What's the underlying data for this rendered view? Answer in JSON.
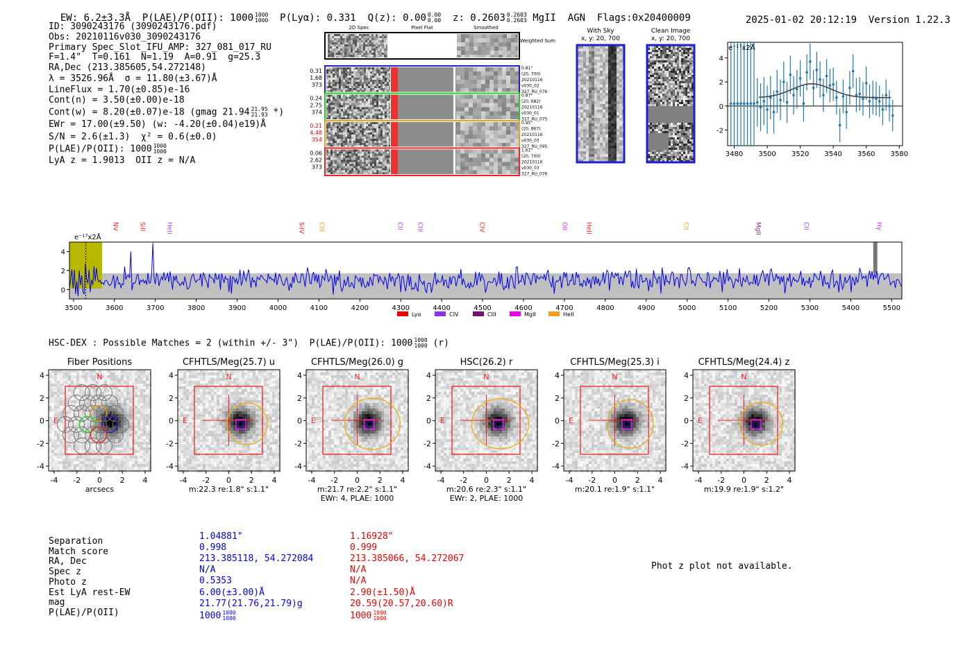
{
  "header": {
    "ew": "EW: 6.2±3.3Å",
    "plae_label": "P(LAE)/P(OII): 1000",
    "plae_hi": "1000",
    "plae_lo": "1000",
    "plya": "P(Lyα): 0.331",
    "qz_label": "Q(z): 0.00",
    "qz_hi": "0.00",
    "qz_lo": "0.00",
    "z_label": "z: 0.2603",
    "z_hi": "0.2603",
    "z_lo": "0.2603",
    "z_suffix": "MgII  AGN  Flags:0x20400009",
    "datetime": "2025-01-02 20:12:19",
    "version": "Version 1.22.3"
  },
  "info": {
    "id": "ID: 3090243176 (3090243176.pdf)",
    "obs": "Obs: 20210116v030_3090243176",
    "primary": "Primary Spec_Slot_IFU_AMP: 327_081_017_RU",
    "fiber_params": "F=1.4\"  T=0.161  N=1.19  A=0.91  g=25.3",
    "radec": "RA,Dec (213.385605,54.272148)",
    "lambda": "λ = 3526.96Å  σ = 11.80(±3.67)Å",
    "lineflux": "LineFlux = 1.70(±0.85)e-16",
    "contn": "Cont(n) = 3.50(±0.00)e-18",
    "contw": "Cont(w) = 8.20(±0.07)e-18 (gmag 21.94",
    "contw_hi": "21.95",
    "contw_lo": "21.93",
    "contw_end": "*)",
    "ewr": "EWr = 17.00(±9.50) (w: -4.20(±0.04)e19)Å",
    "sn": "S/N = 2.6(±1.3)  χ² = 0.6(±0.0)",
    "plae": "P(LAE)/P(OII): 1000",
    "plae_hi": "1000",
    "plae_lo": "1000",
    "lya_z": "LyA z = 1.9013  OII z = N/A"
  },
  "cutouts": {
    "col_titles": [
      "2D Spec",
      "Pixel Flat",
      "Smoothed"
    ],
    "weighted_sum": "Weighted Sum",
    "rows": [
      {
        "left": [
          "0.31",
          "1.68",
          "373"
        ],
        "right": [
          "0.81\"",
          "(20, 700)",
          "20210116",
          "v030_02",
          "327_RU_076"
        ],
        "color": "#1f1fd0",
        "left_color": "#000000"
      },
      {
        "left": [
          "0.24",
          "2.75",
          "374"
        ],
        "right": [
          "0.87\"",
          "(20, 682)",
          "20210116",
          "v030_01",
          "327_RU_075"
        ],
        "color": "#22cc22",
        "left_color": "#000000"
      },
      {
        "left": [
          "0.21",
          "4.48",
          "354"
        ],
        "right": [
          "0.95\"",
          "(20, 867)",
          "20210116",
          "v030_03",
          "327_RU_095"
        ],
        "color": "#e8a020",
        "left_color": "#ee0000"
      },
      {
        "left": [
          "0.06",
          "2.62",
          "373"
        ],
        "right": [
          "1.61\"",
          "(20, 700)",
          "20210116",
          "v030_03",
          "327_RU_076"
        ],
        "color": "#ee2222",
        "left_color": "#000000"
      }
    ],
    "with_sky": {
      "title": "With Sky",
      "sub": "x, y: 20, 700"
    },
    "clean": {
      "title": "Clean Image",
      "sub": "x, y: 20, 700"
    }
  },
  "gauss_plot": {
    "scale_label": "e⁻¹⁷x2Å",
    "x_ticks": [
      "3480",
      "3500",
      "3520",
      "3540",
      "3560",
      "3580"
    ],
    "y_ticks": [
      "-2",
      "0",
      "2",
      "4"
    ]
  },
  "full_spectrum": {
    "scale_label": "e⁻¹⁷x2Å",
    "x_ticks": [
      "3500",
      "3600",
      "3700",
      "3800",
      "3900",
      "4000",
      "4100",
      "4200",
      "4300",
      "4400",
      "4500",
      "4600",
      "4700",
      "4800",
      "4900",
      "5000",
      "5100",
      "5200",
      "5300",
      "5400",
      "5500"
    ],
    "y_ticks": [
      "0",
      "2",
      "4"
    ],
    "lines": [
      {
        "name": "NV",
        "color": "#ee2222"
      },
      {
        "name": "SiII",
        "color": "#ee2222"
      },
      {
        "name": "HeII",
        "color": "#aa44ee"
      },
      {
        "name": "SiIV",
        "color": "#ee2222"
      },
      {
        "name": "CIII",
        "color": "#e8a020"
      },
      {
        "name": "CII",
        "color": "#aa44ee"
      },
      {
        "name": "CIII",
        "color": "#aa44ee"
      },
      {
        "name": "CIV",
        "color": "#ee2222"
      },
      {
        "name": "OII",
        "color": "#ee22ee"
      },
      {
        "name": "HeII",
        "color": "#ee2222"
      },
      {
        "name": "CII",
        "color": "#e8a020"
      },
      {
        "name": "MgII",
        "color": "#882288"
      },
      {
        "name": "CII",
        "color": "#aa44ee"
      },
      {
        "name": "Hγ",
        "color": "#ee22ee"
      }
    ],
    "legend": [
      {
        "label": "Lyα",
        "color": "#ee0000"
      },
      {
        "label": "CIV",
        "color": "#8833ee"
      },
      {
        "label": "CIII",
        "color": "#771177"
      },
      {
        "label": "MgII",
        "color": "#ee00ee"
      },
      {
        "label": "HeII",
        "color": "#f0a020"
      }
    ]
  },
  "chart_data": [
    {
      "type": "scatter",
      "title": "",
      "xlabel": "",
      "ylabel": "e⁻¹⁷x2Å",
      "xlim": [
        3476,
        3582
      ],
      "ylim": [
        -3.3,
        5.3
      ],
      "fit": {
        "center": 3527,
        "sigma": 11.8,
        "amplitude": 1.15,
        "baseline": 0.7
      },
      "x": [
        3478,
        3480,
        3482,
        3484,
        3486,
        3488,
        3490,
        3492,
        3494,
        3496,
        3498,
        3500,
        3502,
        3504,
        3506,
        3508,
        3510,
        3512,
        3514,
        3516,
        3518,
        3520,
        3522,
        3524,
        3526,
        3528,
        3530,
        3532,
        3534,
        3536,
        3538,
        3540,
        3542,
        3544,
        3546,
        3548,
        3550,
        3552,
        3554,
        3556,
        3558,
        3560,
        3562,
        3564,
        3566,
        3568,
        3570,
        3572,
        3574,
        3576
      ],
      "y": [
        0.2,
        0.2,
        0.2,
        0.2,
        0.2,
        0.2,
        0.2,
        0.2,
        0.3,
        -0.1,
        0.4,
        -0.3,
        0.7,
        -0.5,
        1.2,
        0.5,
        2.0,
        0.3,
        2.6,
        0.9,
        1.4,
        2.3,
        0.2,
        2.8,
        3.7,
        1.5,
        3.0,
        2.2,
        0.9,
        2.5,
        1.7,
        1.8,
        0.7,
        -1.6,
        0.8,
        -0.5,
        1.5,
        2.9,
        0.9,
        1.0,
        0.6,
        1.9,
        0.4,
        0.7,
        0.6,
        0.4,
        -0.3,
        0.9,
        0.0,
        -0.8
      ],
      "yerr": [
        9,
        9,
        9,
        9,
        9,
        9,
        9,
        9,
        2.0,
        2.0,
        2.0,
        2.0,
        1.8,
        1.8,
        1.8,
        1.7,
        1.7,
        1.7,
        1.6,
        1.6,
        1.6,
        1.5,
        1.5,
        1.5,
        1.5,
        1.5,
        1.5,
        1.5,
        1.4,
        1.4,
        1.4,
        1.4,
        1.4,
        1.4,
        1.4,
        1.4,
        1.4,
        1.4,
        1.4,
        1.4,
        1.4,
        1.4,
        1.4,
        1.4,
        1.4,
        1.3,
        1.3,
        1.3,
        1.3,
        1.3
      ]
    },
    {
      "type": "line",
      "title": "",
      "xlabel": "",
      "ylabel": "e⁻¹⁷x2Å",
      "xlim": [
        3490,
        5525
      ],
      "ylim": [
        -1,
        5
      ],
      "series": [
        {
          "name": "flux",
          "color": "#0000ee",
          "generated": {
            "start": 3490,
            "end": 5525,
            "step": 3,
            "mean": 1.0,
            "amp": 0.95,
            "seed": 42
          }
        },
        {
          "name": "error",
          "color": "#bbbbbb",
          "band": [
            0,
            1.7
          ]
        }
      ],
      "highlight_regions": [
        {
          "x0": 3490,
          "x1": 3570,
          "color": "#b8b800"
        },
        {
          "x0": 5455,
          "x1": 5465,
          "color": "#777777"
        }
      ]
    }
  ],
  "imaging": {
    "summary": "HSC-DEX : Possible Matches = 2 (within +/- 3\")  P(LAE)/P(OII): 1000",
    "summary_hi": "1000",
    "summary_lo": "1000",
    "summary_end": "(r)",
    "panels": [
      {
        "title": "Fiber Positions",
        "footer1": "arcsecs",
        "footer2": ""
      },
      {
        "title": "CFHTLS/Meg(25.7) u",
        "footer1": "m:22.3  re:1.8\"  s:1.1\"",
        "footer2": ""
      },
      {
        "title": "CFHTLS/Meg(26.0) g",
        "footer1": "m:21.7  re:2.2\"  s:1.1\"",
        "footer2": "EWr: 4, PLAE: 1000"
      },
      {
        "title": "HSC(26.2) r",
        "footer1": "m:20.6  re:2.3\"  s:1.1\"",
        "footer2": "EWr: 2, PLAE: 1000"
      },
      {
        "title": "CFHTLS/Meg(25.3) i",
        "footer1": "m:20.1  re:1.9\"  s:1.1\"",
        "footer2": ""
      },
      {
        "title": "CFHTLS/Meg(24.4) z",
        "footer1": "m:19.9  re:1.9\"  s:1.2\"",
        "footer2": ""
      }
    ],
    "axis_ticks": [
      "-4",
      "-2",
      "0",
      "2",
      "4"
    ],
    "north": "N",
    "east": "E"
  },
  "matches": {
    "labels": [
      "Separation",
      "Match score",
      "RA, Dec",
      "Spec z",
      "Photo z",
      "Est LyA rest-EW",
      "mag",
      "P(LAE)/P(OII)"
    ],
    "match1": [
      "1.04881\"",
      "0.998",
      "213.385118, 54.272084",
      "N/A",
      "0.5353",
      "6.00(±3.00)Å",
      "21.77(21.76,21.79)g",
      "1000"
    ],
    "match1_plae_hi": "1000",
    "match1_plae_lo": "1000",
    "match2": [
      "1.16928\"",
      "0.999",
      "213.385066, 54.272067",
      "N/A",
      "N/A",
      "2.90(±1.50)Å",
      "20.59(20.57,20.60)R",
      "1000"
    ],
    "match2_plae_hi": "1000",
    "match2_plae_lo": "1000",
    "photz_note": "Phot z plot not available."
  }
}
